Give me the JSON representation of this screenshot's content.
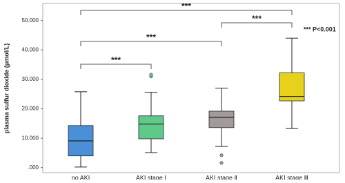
{
  "chart_data": {
    "type": "box",
    "y_label": "plasma sulfur dioxide (μmol/L)",
    "categories": [
      "no AKI",
      "AKI stage Ⅰ",
      "AKI stage Ⅱ",
      "AKI stage Ⅲ"
    ],
    "boxes": [
      {
        "min": 0.2,
        "q1": 4.0,
        "median": 9.1,
        "q3": 14.3,
        "max": 25.8,
        "outliers": [],
        "color": "#4a90d9"
      },
      {
        "min": 5.1,
        "q1": 9.8,
        "median": 14.8,
        "q3": 17.6,
        "max": 25.6,
        "outliers": [
          31.0,
          31.6
        ],
        "color": "#5fc98a"
      },
      {
        "min": 7.2,
        "q1": 13.6,
        "median": 17.1,
        "q3": 19.2,
        "max": 27.0,
        "outliers": [
          4.2,
          1.6
        ],
        "color": "#a39a9a"
      },
      {
        "min": 13.3,
        "q1": 22.7,
        "median": 24.2,
        "q3": 32.2,
        "max": 44.0,
        "outliers": [],
        "color": "#e6d21a"
      }
    ],
    "ylim": [
      -1.7,
      55.8
    ],
    "yticks": [
      {
        "value": 0,
        "label": ".000"
      },
      {
        "value": 10,
        "label": "10.000"
      },
      {
        "value": 20,
        "label": "20.000"
      },
      {
        "value": 30,
        "label": "30.000"
      },
      {
        "value": 40,
        "label": "40.000"
      },
      {
        "value": 50,
        "label": "50.000"
      }
    ],
    "annotations": [
      "***",
      "***",
      "***",
      "***",
      "*** P<0.001"
    ]
  }
}
